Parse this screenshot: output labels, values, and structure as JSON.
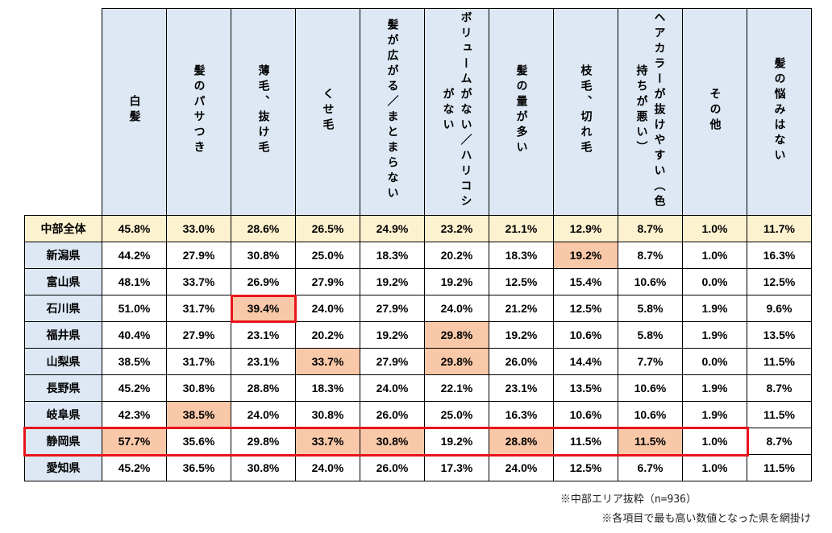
{
  "chart_data": {
    "type": "table",
    "columns": [
      "白髪",
      "髪のパサつき",
      "薄毛、抜け毛",
      "くせ毛",
      "髪が広がる／まとまらない",
      "ボリュームがない／ハリコシがない",
      "髪の量が多い",
      "枝毛、切れ毛",
      "ヘアカラーが抜けやすい（色持ちが悪い）",
      "その他",
      "髪の悩みはない"
    ],
    "rows": [
      {
        "label": "中部全体",
        "values": [
          "45.8%",
          "33.0%",
          "28.6%",
          "26.5%",
          "24.9%",
          "23.2%",
          "21.1%",
          "12.9%",
          "8.7%",
          "1.0%",
          "11.7%"
        ],
        "highlight": []
      },
      {
        "label": "新潟県",
        "values": [
          "44.2%",
          "27.9%",
          "30.8%",
          "25.0%",
          "18.3%",
          "20.2%",
          "18.3%",
          "19.2%",
          "8.7%",
          "1.0%",
          "16.3%"
        ],
        "highlight": [
          7
        ]
      },
      {
        "label": "富山県",
        "values": [
          "48.1%",
          "33.7%",
          "26.9%",
          "27.9%",
          "19.2%",
          "19.2%",
          "12.5%",
          "15.4%",
          "10.6%",
          "0.0%",
          "12.5%"
        ],
        "highlight": []
      },
      {
        "label": "石川県",
        "values": [
          "51.0%",
          "31.7%",
          "39.4%",
          "24.0%",
          "27.9%",
          "24.0%",
          "21.2%",
          "12.5%",
          "5.8%",
          "1.9%",
          "9.6%"
        ],
        "highlight": [
          2
        ]
      },
      {
        "label": "福井県",
        "values": [
          "40.4%",
          "27.9%",
          "23.1%",
          "20.2%",
          "19.2%",
          "29.8%",
          "19.2%",
          "10.6%",
          "5.8%",
          "1.9%",
          "13.5%"
        ],
        "highlight": [
          5
        ]
      },
      {
        "label": "山梨県",
        "values": [
          "38.5%",
          "31.7%",
          "23.1%",
          "33.7%",
          "27.9%",
          "29.8%",
          "26.0%",
          "14.4%",
          "7.7%",
          "0.0%",
          "11.5%"
        ],
        "highlight": [
          3,
          5
        ]
      },
      {
        "label": "長野県",
        "values": [
          "45.2%",
          "30.8%",
          "28.8%",
          "18.3%",
          "24.0%",
          "22.1%",
          "23.1%",
          "13.5%",
          "10.6%",
          "1.9%",
          "8.7%"
        ],
        "highlight": []
      },
      {
        "label": "岐阜県",
        "values": [
          "42.3%",
          "38.5%",
          "24.0%",
          "30.8%",
          "26.0%",
          "25.0%",
          "16.3%",
          "10.6%",
          "10.6%",
          "1.9%",
          "11.5%"
        ],
        "highlight": [
          1
        ]
      },
      {
        "label": "静岡県",
        "values": [
          "57.7%",
          "35.6%",
          "29.8%",
          "33.7%",
          "30.8%",
          "19.2%",
          "28.8%",
          "11.5%",
          "11.5%",
          "1.0%",
          "8.7%"
        ],
        "highlight": [
          0,
          3,
          4,
          6,
          8
        ]
      },
      {
        "label": "愛知県",
        "values": [
          "45.2%",
          "36.5%",
          "30.8%",
          "24.0%",
          "26.0%",
          "17.3%",
          "24.0%",
          "12.5%",
          "6.7%",
          "1.0%",
          "11.5%"
        ],
        "highlight": []
      }
    ],
    "highlight_color": "#f8c8a8",
    "total_row_color": "#fdf2d0",
    "header_color": "#dde8f4",
    "box_color": "#e8141c"
  },
  "notes": [
    "※中部エリア抜粋（n=936）",
    "※各項目で最も高い数値となった県を網掛け"
  ]
}
